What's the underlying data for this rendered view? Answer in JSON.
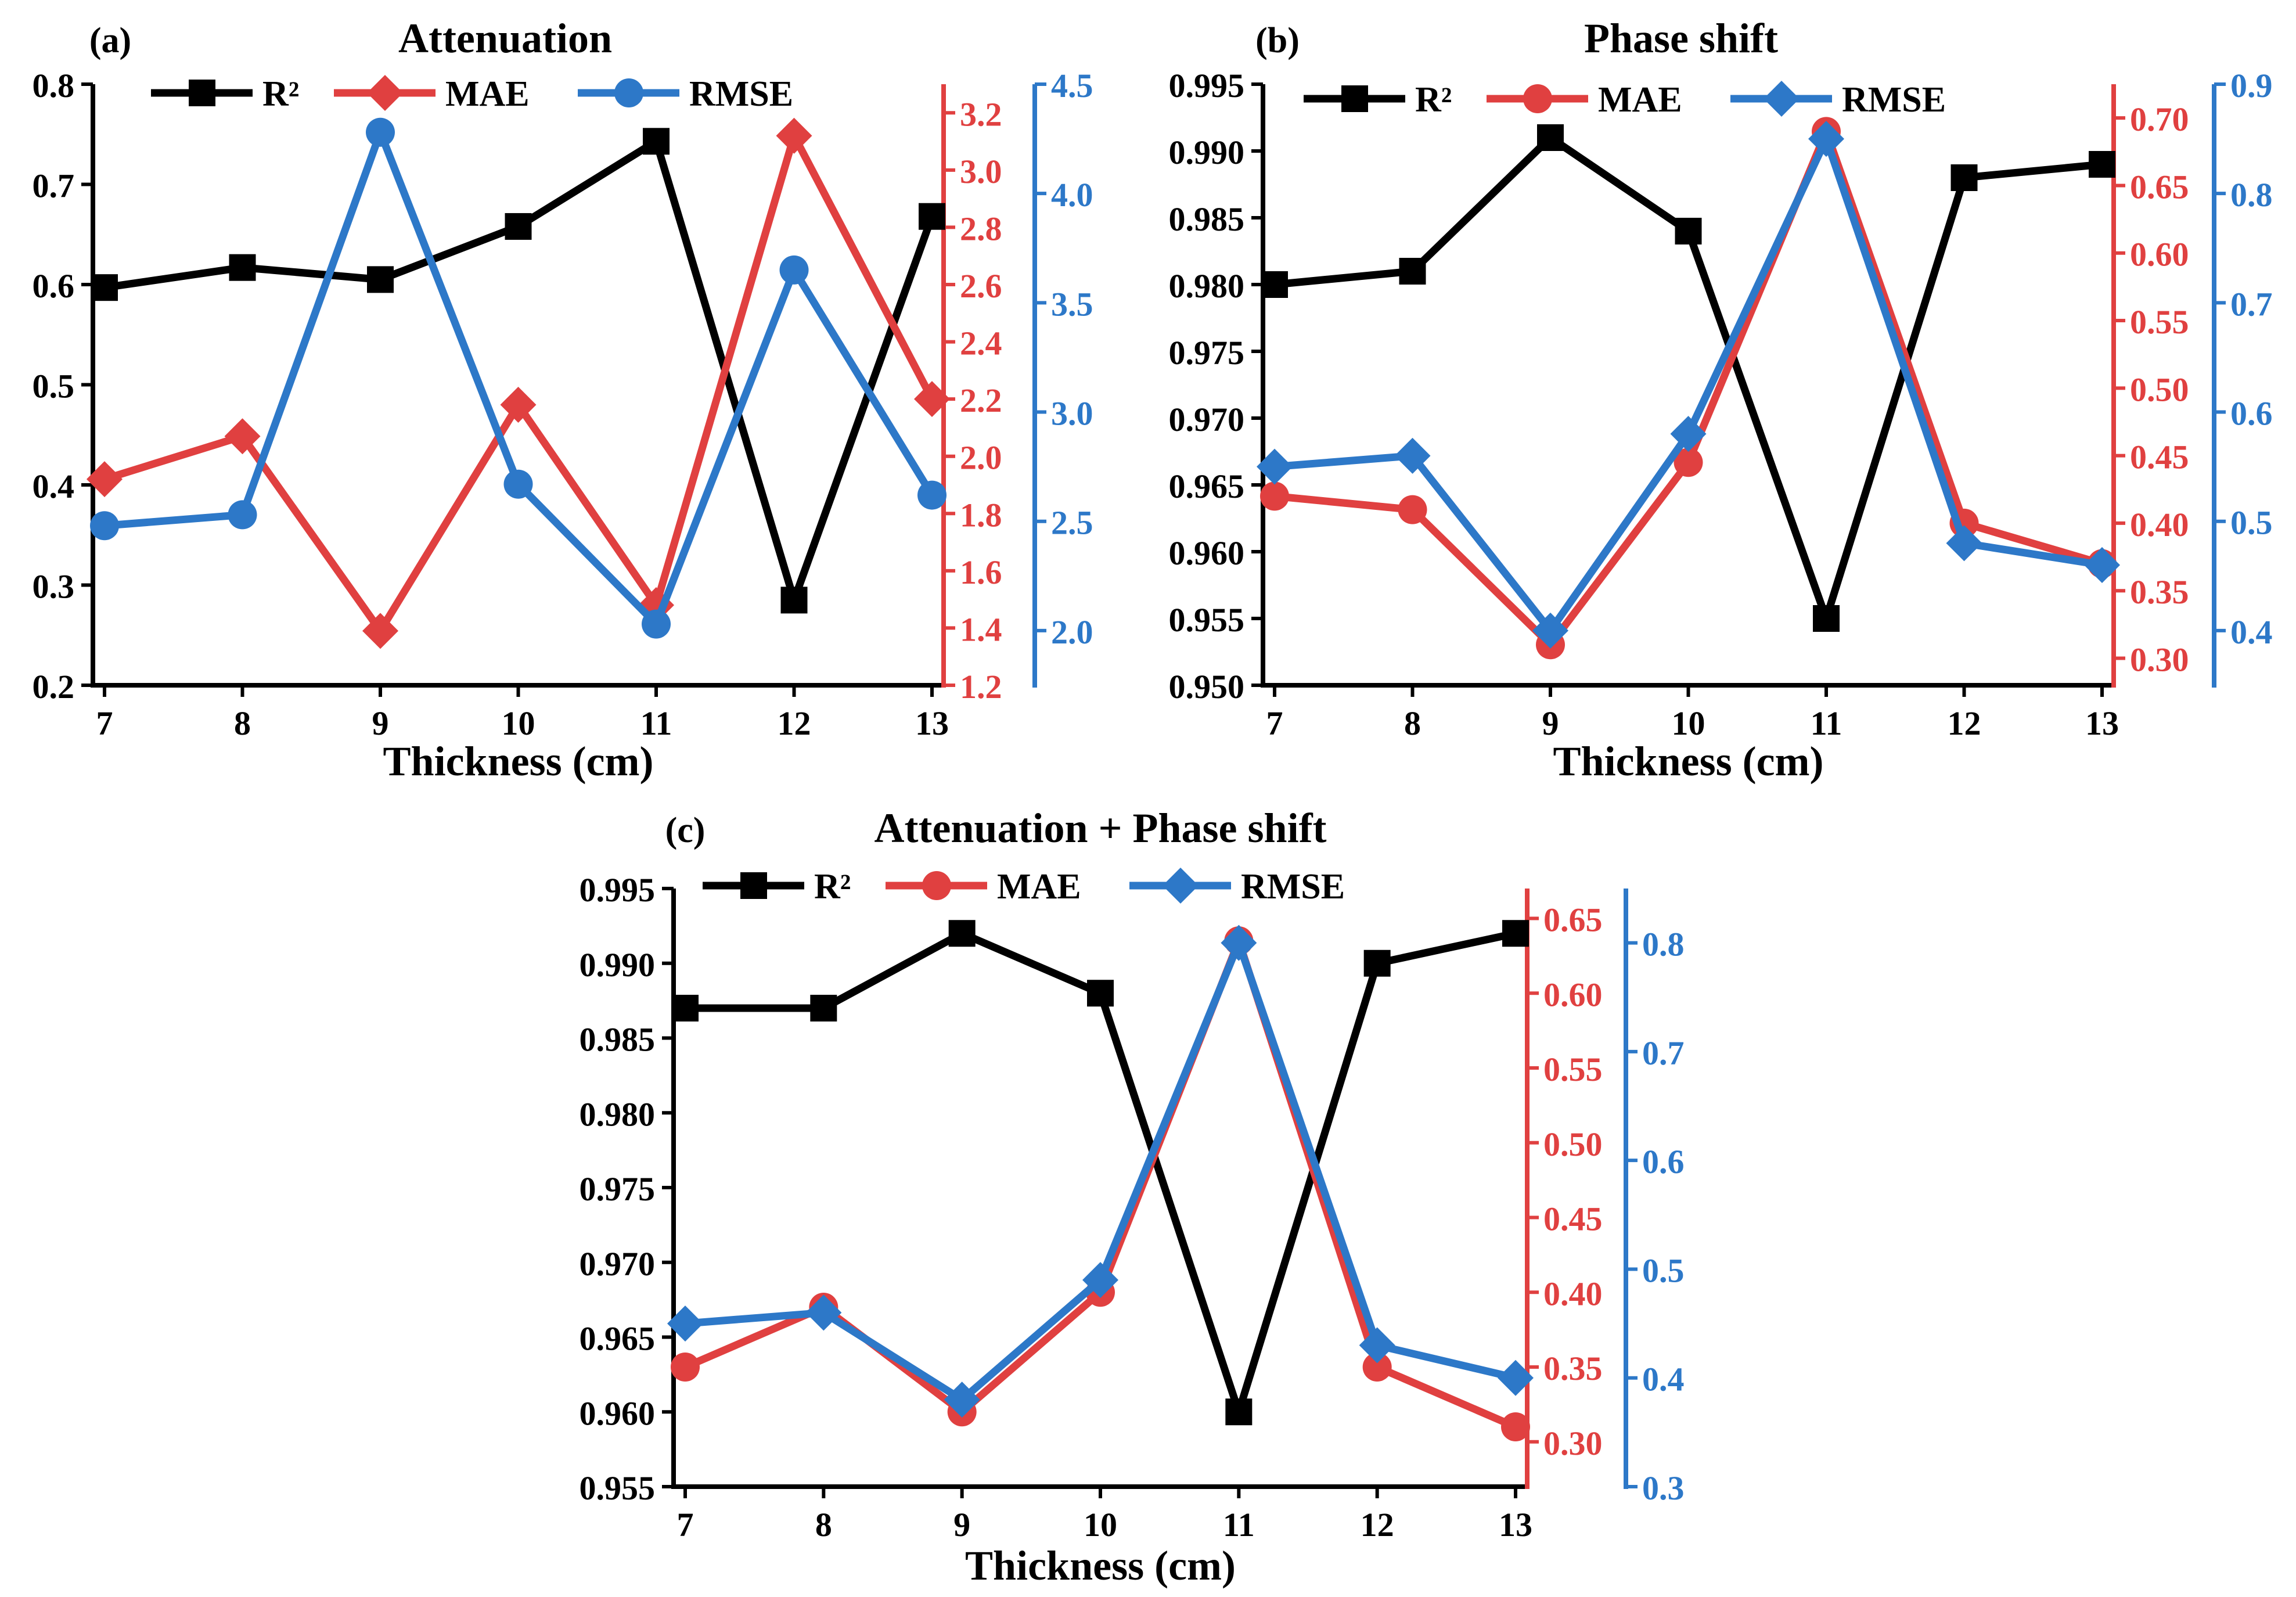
{
  "figure": {
    "colors": {
      "r2": "#000000",
      "mae": "#e04040",
      "rmse": "#2d78c8"
    }
  },
  "chart_data": [
    {
      "type": "line",
      "panel_label": "(a)",
      "title": "Attenuation",
      "xlabel": "Thickness (cm)",
      "categories": [
        "7",
        "8",
        "9",
        "10",
        "11",
        "12",
        "13"
      ],
      "legend": [
        "R²",
        "MAE",
        "RMSE"
      ],
      "legend_markers": [
        "square",
        "diamond",
        "circle"
      ],
      "series": [
        {
          "name": "R²",
          "axis": "left",
          "marker": "square",
          "values": [
            0.597,
            0.617,
            0.605,
            0.658,
            0.743,
            0.285,
            0.668
          ]
        },
        {
          "name": "MAE",
          "axis": "right1",
          "marker": "diamond",
          "values": [
            1.92,
            2.07,
            1.39,
            2.18,
            1.48,
            3.12,
            2.2
          ]
        },
        {
          "name": "RMSE",
          "axis": "right2",
          "marker": "circle",
          "values": [
            2.48,
            2.53,
            4.28,
            2.67,
            2.03,
            3.65,
            2.62
          ]
        }
      ],
      "axes": {
        "left": {
          "min": 0.2,
          "max": 0.8,
          "ticks": [
            "0.2",
            "0.3",
            "0.4",
            "0.5",
            "0.6",
            "0.7",
            "0.8"
          ]
        },
        "right1": {
          "min": 1.2,
          "max": 3.3,
          "ticks": [
            "1.2",
            "1.4",
            "1.6",
            "1.8",
            "2.0",
            "2.2",
            "2.4",
            "2.6",
            "2.8",
            "3.0",
            "3.2"
          ]
        },
        "right2": {
          "min": 1.75,
          "max": 4.5,
          "ticks": [
            "2.0",
            "2.5",
            "3.0",
            "3.5",
            "4.0",
            "4.5"
          ]
        }
      }
    },
    {
      "type": "line",
      "panel_label": "(b)",
      "title": "Phase shift",
      "xlabel": "Thickness (cm)",
      "categories": [
        "7",
        "8",
        "9",
        "10",
        "11",
        "12",
        "13"
      ],
      "legend": [
        "R²",
        "MAE",
        "RMSE"
      ],
      "legend_markers": [
        "square",
        "circle",
        "diamond"
      ],
      "series": [
        {
          "name": "R²",
          "axis": "left",
          "marker": "square",
          "values": [
            0.98,
            0.981,
            0.991,
            0.984,
            0.955,
            0.988,
            0.989
          ]
        },
        {
          "name": "MAE",
          "axis": "right1",
          "marker": "circle",
          "values": [
            0.42,
            0.41,
            0.31,
            0.445,
            0.69,
            0.4,
            0.37
          ]
        },
        {
          "name": "RMSE",
          "axis": "right2",
          "marker": "diamond",
          "values": [
            0.55,
            0.56,
            0.4,
            0.58,
            0.85,
            0.48,
            0.46
          ]
        }
      ],
      "axes": {
        "left": {
          "min": 0.95,
          "max": 0.995,
          "ticks": [
            "0.950",
            "0.955",
            "0.960",
            "0.965",
            "0.970",
            "0.975",
            "0.980",
            "0.985",
            "0.990",
            "0.995"
          ]
        },
        "right1": {
          "min": 0.28,
          "max": 0.725,
          "ticks": [
            "0.30",
            "0.35",
            "0.40",
            "0.45",
            "0.50",
            "0.55",
            "0.60",
            "0.65",
            "0.70"
          ]
        },
        "right2": {
          "min": 0.35,
          "max": 0.9,
          "ticks": [
            "0.4",
            "0.5",
            "0.6",
            "0.7",
            "0.8",
            "0.9"
          ]
        }
      }
    },
    {
      "type": "line",
      "panel_label": "(c)",
      "title": "Attenuation + Phase shift",
      "xlabel": "Thickness (cm)",
      "categories": [
        "7",
        "8",
        "9",
        "10",
        "11",
        "12",
        "13"
      ],
      "legend": [
        "R²",
        "MAE",
        "RMSE"
      ],
      "legend_markers": [
        "square",
        "circle",
        "diamond"
      ],
      "series": [
        {
          "name": "R²",
          "axis": "left",
          "marker": "square",
          "values": [
            0.987,
            0.987,
            0.992,
            0.988,
            0.96,
            0.99,
            0.992
          ]
        },
        {
          "name": "MAE",
          "axis": "right1",
          "marker": "circle",
          "values": [
            0.35,
            0.39,
            0.32,
            0.4,
            0.635,
            0.35,
            0.31
          ]
        },
        {
          "name": "RMSE",
          "axis": "right2",
          "marker": "diamond",
          "values": [
            0.45,
            0.46,
            0.38,
            0.49,
            0.8,
            0.43,
            0.4
          ]
        }
      ],
      "axes": {
        "left": {
          "min": 0.955,
          "max": 0.995,
          "ticks": [
            "0.955",
            "0.960",
            "0.965",
            "0.970",
            "0.975",
            "0.980",
            "0.985",
            "0.990",
            "0.995"
          ]
        },
        "right1": {
          "min": 0.27,
          "max": 0.67,
          "ticks": [
            "0.30",
            "0.35",
            "0.40",
            "0.45",
            "0.50",
            "0.55",
            "0.60",
            "0.65"
          ]
        },
        "right2": {
          "min": 0.3,
          "max": 0.85,
          "ticks": [
            "0.3",
            "0.4",
            "0.5",
            "0.6",
            "0.7",
            "0.8"
          ]
        }
      }
    }
  ]
}
